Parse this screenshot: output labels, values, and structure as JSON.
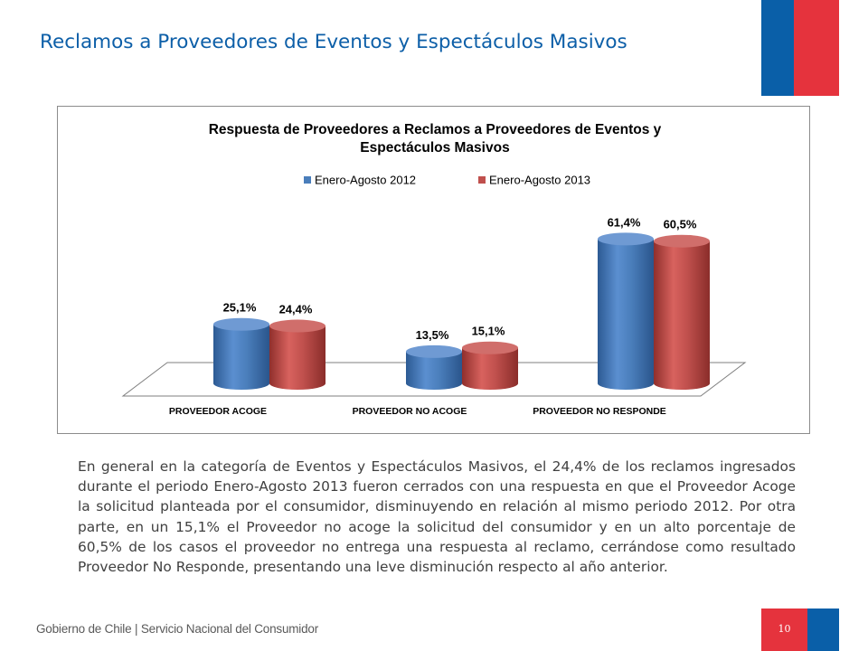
{
  "page": {
    "title": "Reclamos a Proveedores de Eventos y Espectáculos Masivos",
    "page_number": "10",
    "footer": "Gobierno de Chile | Servicio Nacional del Consumidor",
    "body_text": "En general en la categoría de Eventos y Espectáculos Masivos, el 24,4% de los reclamos ingresados durante el periodo Enero-Agosto 2013 fueron cerrados con una respuesta en que el Proveedor Acoge la solicitud planteada por el consumidor, disminuyendo en relación al mismo periodo 2012. Por otra parte, en un 15,1% el Proveedor  no acoge la solicitud del consumidor y en un alto porcentaje de  60,5% de los casos el proveedor no entrega una respuesta al reclamo, cerrándose como resultado Proveedor No Responde,  presentando una leve disminución respecto al año anterior."
  },
  "colors": {
    "title_blue": "#0d5fa8",
    "flag_blue": "#0a5fa8",
    "flag_red": "#e5333d",
    "series_2012": "#4a7ebb",
    "series_2013": "#c0504d"
  },
  "chart_data": {
    "type": "bar",
    "title_line1": "Respuesta de Proveedores a Reclamos a Proveedores de Eventos y",
    "title_line2": "Espectáculos Masivos",
    "categories": [
      "PROVEEDOR ACOGE",
      "PROVEEDOR NO ACOGE",
      "PROVEEDOR NO RESPONDE"
    ],
    "series": [
      {
        "name": "Enero-Agosto 2012",
        "values": [
          25.1,
          13.5,
          61.4
        ],
        "labels": [
          "25,1%",
          "13,5%",
          "61,4%"
        ],
        "color": "#4a7ebb"
      },
      {
        "name": "Enero-Agosto 2013",
        "values": [
          24.4,
          15.1,
          60.5
        ],
        "labels": [
          "24,4%",
          "15,1%",
          "60,5%"
        ],
        "color": "#c0504d"
      }
    ],
    "legend_position": "top-center",
    "bar_shape": "3d-cylinder",
    "grid": false
  }
}
